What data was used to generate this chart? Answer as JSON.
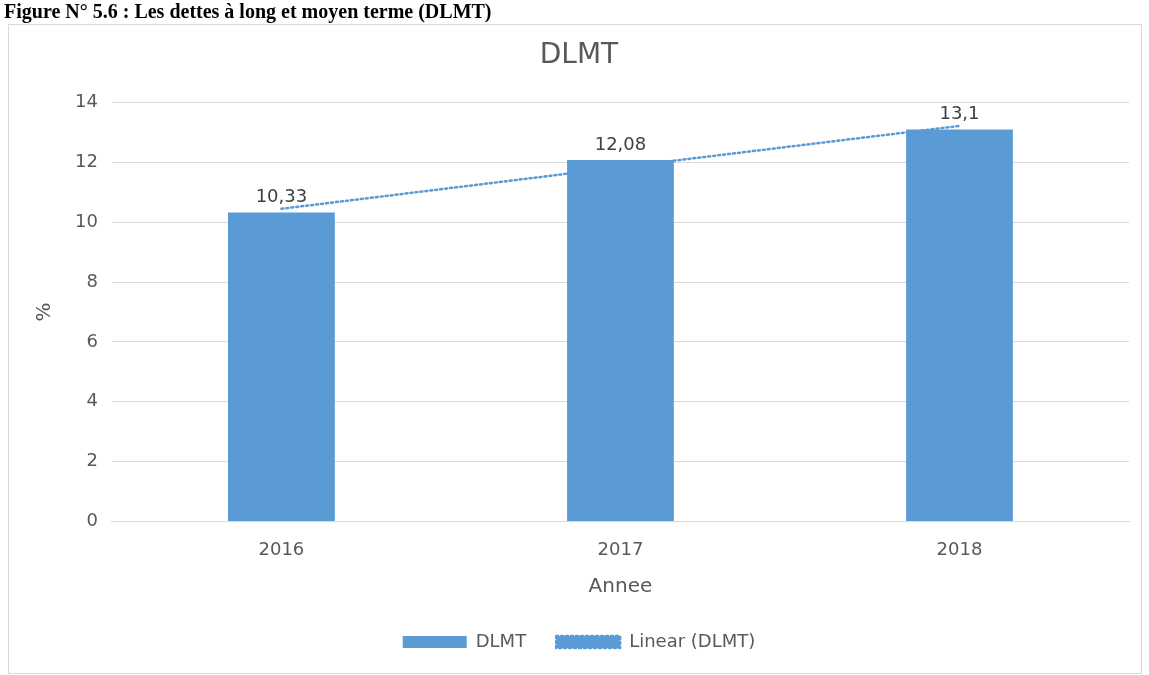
{
  "chart_data": {
    "type": "bar",
    "title": "DLMT",
    "xlabel": "Annee",
    "ylabel": "%",
    "annotations": [
      "Figure N° 5.6 : Les dettes à long et moyen terme (DLMT)"
    ],
    "categories": [
      "2016",
      "2017",
      "2018"
    ],
    "series": [
      {
        "name": "DLMT",
        "color": "#5b9bd5",
        "values": [
          10.33,
          12.08,
          13.1
        ],
        "value_labels": [
          "10,33",
          "12,08",
          "13,1"
        ]
      },
      {
        "name": "Linear (DLMT)",
        "type": "line",
        "color": "#5b9bd5",
        "values": [
          10.45,
          11.84,
          13.22
        ],
        "line_style": "dotted",
        "marker": "none"
      }
    ],
    "ylim": [
      0,
      14
    ],
    "yticks": [
      0,
      2,
      4,
      6,
      8,
      10,
      12,
      14
    ],
    "grid": "y",
    "legend": "bottom"
  }
}
